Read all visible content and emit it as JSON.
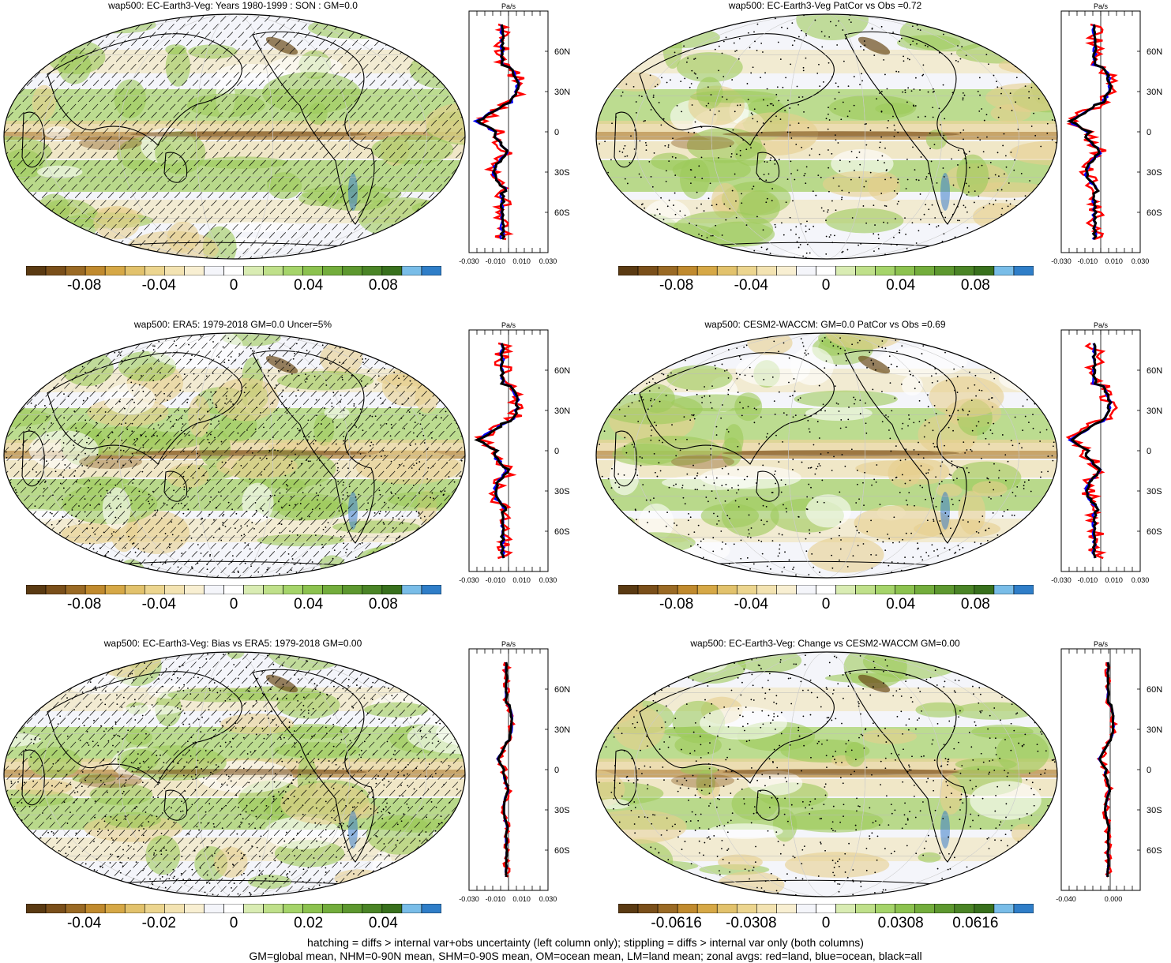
{
  "colorbar_colors": [
    "#5a3a12",
    "#7a4f1a",
    "#9a6a25",
    "#c08a2e",
    "#d6a846",
    "#e2c26c",
    "#ecd58f",
    "#f3e3b2",
    "#f8efd2",
    "#f4f5fa",
    "#ffffff",
    "#d9ecb3",
    "#bfe08a",
    "#a5d46a",
    "#8cc24f",
    "#73ad3c",
    "#5d982f",
    "#4a8426",
    "#38701d",
    "#79bde8",
    "#2f7ec8"
  ],
  "colors": {
    "land": "#ff0000",
    "ocean": "#0000ff",
    "all": "#000000",
    "neg_shade": "#c89a3a",
    "pos_shade": "#7fbf3f"
  },
  "profile_unit": "Pa/s",
  "lat_ticks": [
    "60N",
    "30N",
    "0",
    "30S",
    "60S"
  ],
  "panels": [
    {
      "title": "wap500: EC-Earth3-Veg: Years 1980-1999 : SON : GM=0.0",
      "colorbar_labels": [
        "-0.08",
        "-0.04",
        "0",
        "0.04",
        "0.08"
      ],
      "profile_xticks": [
        "-0.030",
        "-0.010",
        "0.010",
        "0.030"
      ],
      "hatched": true,
      "stippled": false
    },
    {
      "title": "wap500: EC-Earth3-Veg PatCor vs Obs =0.72",
      "colorbar_labels": [
        "-0.08",
        "-0.04",
        "0",
        "0.04",
        "0.08"
      ],
      "profile_xticks": [
        "-0.030",
        "-0.010",
        "0.010",
        "0.030"
      ],
      "hatched": false,
      "stippled": true
    },
    {
      "title": "wap500: ERA5: 1979-2018 GM=0.0 Uncer=5%",
      "colorbar_labels": [
        "-0.08",
        "-0.04",
        "0",
        "0.04",
        "0.08"
      ],
      "profile_xticks": [
        "-0.030",
        "-0.010",
        "0.010",
        "0.030"
      ],
      "hatched": true,
      "stippled": true
    },
    {
      "title": "wap500: CESM2-WACCM: GM=0.0 PatCor vs Obs =0.69",
      "colorbar_labels": [
        "-0.08",
        "-0.04",
        "0",
        "0.04",
        "0.08"
      ],
      "profile_xticks": [
        "-0.030",
        "-0.010",
        "0.010",
        "0.030"
      ],
      "hatched": false,
      "stippled": true
    },
    {
      "title": "wap500: EC-Earth3-Veg: Bias vs ERA5: 1979-2018  GM=0.00",
      "colorbar_labels": [
        "-0.04",
        "-0.02",
        "0",
        "0.02",
        "0.04"
      ],
      "profile_xticks": [
        "-0.030",
        "-0.010",
        "0.010",
        "0.030"
      ],
      "hatched": true,
      "stippled": true
    },
    {
      "title": "wap500: EC-Earth3-Veg: Change vs CESM2-WACCM GM=0.00",
      "colorbar_labels": [
        "-0.0616",
        "-0.0308",
        "0",
        "0.0308",
        "0.0616"
      ],
      "profile_xticks": [
        "-0.040",
        "0.000"
      ],
      "hatched": false,
      "stippled": true
    }
  ],
  "footer": {
    "line1": "hatching = diffs > internal var+obs uncertainty (left column only); stippling = diffs > internal var only (both columns)",
    "line2": "GM=global mean, NHM=0-90N mean, SHM=0-90S mean, OM=ocean mean, LM=land mean; zonal avgs: red=land, blue=ocean, black=all"
  }
}
